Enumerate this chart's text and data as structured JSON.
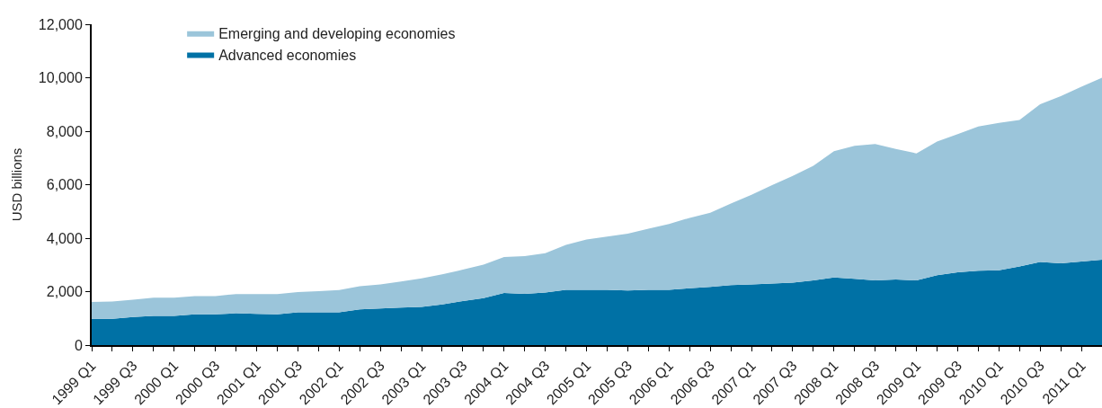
{
  "chart_data": {
    "type": "area",
    "stacked": true,
    "ylabel": "USD billions",
    "categories": [
      "1999 Q1",
      null,
      "1999 Q3",
      null,
      "2000 Q1",
      null,
      "2000 Q3",
      null,
      "2001 Q1",
      null,
      "2001 Q3",
      null,
      "2002 Q1",
      null,
      "2002 Q3",
      null,
      "2003 Q1",
      null,
      "2003 Q3",
      null,
      "2004 Q1",
      null,
      "2004 Q3",
      null,
      "2005 Q1",
      null,
      "2005 Q3",
      null,
      "2006 Q1",
      null,
      "2006 Q3",
      null,
      "2007 Q1",
      null,
      "2007 Q3",
      null,
      "2008 Q1",
      null,
      "2008 Q3",
      null,
      "2009 Q1",
      null,
      "2009 Q3",
      null,
      "2010 Q1",
      null,
      "2010 Q3",
      null,
      "2011 Q1",
      null
    ],
    "series": [
      {
        "name": "Advanced economies",
        "color": "#0071a5",
        "values": [
          980,
          980,
          1050,
          1090,
          1090,
          1150,
          1150,
          1190,
          1170,
          1150,
          1230,
          1230,
          1230,
          1340,
          1370,
          1400,
          1430,
          1520,
          1650,
          1760,
          1950,
          1920,
          1970,
          2070,
          2070,
          2070,
          2040,
          2070,
          2070,
          2130,
          2180,
          2240,
          2270,
          2300,
          2340,
          2420,
          2530,
          2480,
          2420,
          2450,
          2420,
          2610,
          2720,
          2780,
          2800,
          2940,
          3110,
          3060,
          3130,
          3190
        ]
      },
      {
        "name": "Emerging and developing economies",
        "color": "#9bc5da",
        "values": [
          630,
          650,
          650,
          680,
          680,
          680,
          680,
          720,
          740,
          760,
          750,
          790,
          830,
          860,
          900,
          980,
          1070,
          1130,
          1170,
          1250,
          1340,
          1410,
          1470,
          1680,
          1880,
          1990,
          2130,
          2280,
          2460,
          2630,
          2770,
          3050,
          3350,
          3680,
          3990,
          4290,
          4720,
          4970,
          5100,
          4890,
          4750,
          5000,
          5170,
          5400,
          5510,
          5480,
          5900,
          6250,
          6530,
          6810
        ]
      }
    ],
    "ylim": [
      0,
      12000
    ],
    "yticks": [
      0,
      {
        "value": 2000,
        "label": "2,000"
      },
      {
        "value": 4000,
        "label": "4,000"
      },
      {
        "value": 6000,
        "label": "6,000"
      },
      {
        "value": 8000,
        "label": "8,000"
      },
      {
        "value": 10000,
        "label": "10,000"
      },
      {
        "value": 12000,
        "label": "12,000"
      }
    ],
    "legend": "top left"
  }
}
